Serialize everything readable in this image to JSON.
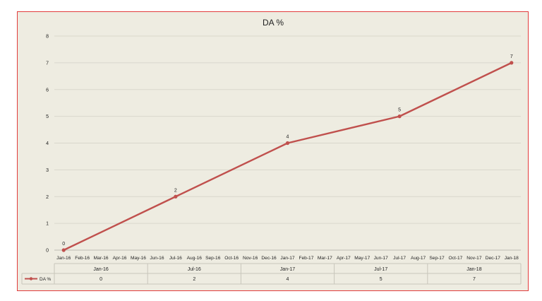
{
  "chart_data": {
    "type": "line",
    "title": "DA %",
    "x_ticks": [
      "Jan-16",
      "Feb-16",
      "Mar-16",
      "Apr-16",
      "May-16",
      "Jun-16",
      "Jul-16",
      "Aug-16",
      "Sep-16",
      "Oct-16",
      "Nov-16",
      "Dec-16",
      "Jan-17",
      "Feb-17",
      "Mar-17",
      "Apr-17",
      "May-17",
      "Jun-17",
      "Jul-17",
      "Aug-17",
      "Sep-17",
      "Oct-17",
      "Nov-17",
      "Dec-17",
      "Jan-18"
    ],
    "series": [
      {
        "name": "DA %",
        "color": "#c0504d",
        "points": [
          {
            "x": "Jan-16",
            "y": 0
          },
          {
            "x": "Jul-16",
            "y": 2
          },
          {
            "x": "Jan-17",
            "y": 4
          },
          {
            "x": "Jul-17",
            "y": 5
          },
          {
            "x": "Jan-18",
            "y": 7
          }
        ]
      }
    ],
    "ylim": [
      0,
      8
    ],
    "y_ticks": [
      0,
      1,
      2,
      3,
      4,
      5,
      6,
      7,
      8
    ],
    "grid": true,
    "data_labels": true,
    "data_table": {
      "columns": [
        "Jan-16",
        "Jul-16",
        "Jan-17",
        "Jul-17",
        "Jan-18"
      ],
      "rows": [
        {
          "series": "DA %",
          "values": [
            "0",
            "2",
            "4",
            "5",
            "7"
          ]
        }
      ]
    }
  },
  "colors": {
    "background": "#eeece1",
    "border": "#e23c3c",
    "series": "#c0504d",
    "grid": "#d9d7cc"
  }
}
